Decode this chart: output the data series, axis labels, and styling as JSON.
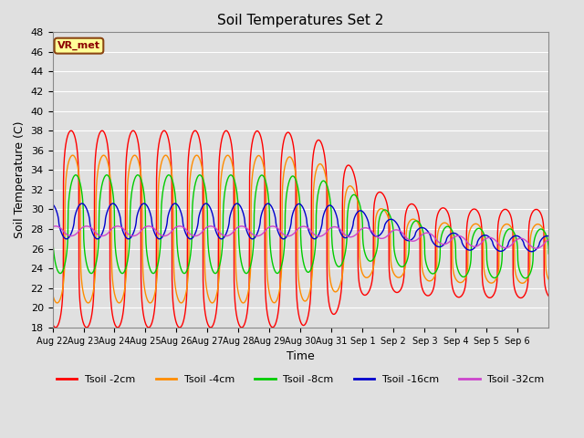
{
  "title": "Soil Temperatures Set 2",
  "xlabel": "Time",
  "ylabel": "Soil Temperature (C)",
  "ylim": [
    18,
    48
  ],
  "yticks": [
    18,
    20,
    22,
    24,
    26,
    28,
    30,
    32,
    34,
    36,
    38,
    40,
    42,
    44,
    46,
    48
  ],
  "bg_color": "#e0e0e0",
  "plot_bg_color": "#e0e0e0",
  "grid_color": "#ffffff",
  "annotation_text": "VR_met",
  "annotation_color": "#8B0000",
  "annotation_bg": "#ffff99",
  "legend_labels": [
    "Tsoil -2cm",
    "Tsoil -4cm",
    "Tsoil -8cm",
    "Tsoil -16cm",
    "Tsoil -32cm"
  ],
  "line_colors": [
    "#ff0000",
    "#ff8c00",
    "#00cc00",
    "#0000cc",
    "#cc44cc"
  ],
  "line_widths": [
    1.0,
    1.0,
    1.0,
    1.0,
    1.0
  ],
  "xtick_labels": [
    "Aug 22",
    "Aug 23",
    "Aug 24",
    "Aug 25",
    "Aug 26",
    "Aug 27",
    "Aug 28",
    "Aug 29",
    "Aug 30",
    "Aug 31",
    "Sep 1",
    "Sep 2",
    "Sep 3",
    "Sep 4",
    "Sep 5",
    "Sep 6"
  ],
  "n_days": 16,
  "n_pts_per_day": 144
}
